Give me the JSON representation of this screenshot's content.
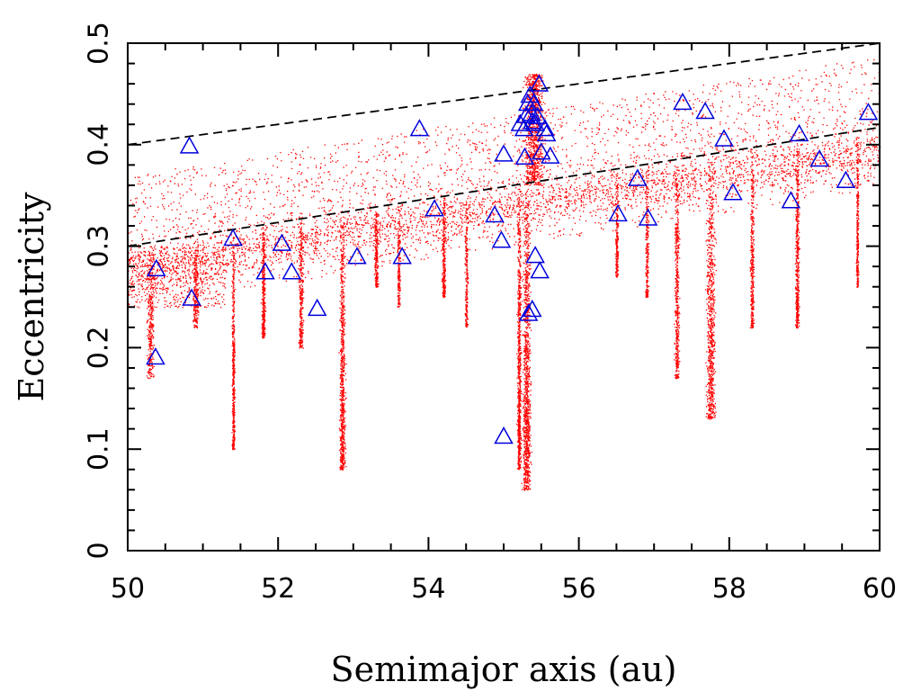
{
  "chart_data": {
    "type": "scatter",
    "title": "",
    "xlabel": "Semimajor axis (au)",
    "ylabel": "Eccentricity",
    "xlim": [
      50,
      60
    ],
    "ylim": [
      0,
      0.5
    ],
    "x_ticks": [
      "50",
      "52",
      "54",
      "56",
      "58",
      "60"
    ],
    "y_ticks": [
      "0",
      "0.1",
      "0.2",
      "0.3",
      "0.4",
      "0.5"
    ],
    "grid": false,
    "legend": "none",
    "colors": {
      "simulated_particles": "#ff0000",
      "observed_objects": "#0000dd",
      "perihelion_lines": "#000000"
    },
    "reference_lines": [
      {
        "style": "dashed",
        "x": [
          50,
          60
        ],
        "y": [
          0.4,
          0.5
        ]
      },
      {
        "style": "dashed",
        "x": [
          50,
          60
        ],
        "y": [
          0.3,
          0.417
        ]
      }
    ],
    "series": [
      {
        "marker": "triangle-open",
        "x": [
          50.37,
          50.38,
          50.82,
          50.85,
          51.4,
          51.83,
          52.05,
          52.18,
          52.52,
          53.05,
          53.65,
          53.88,
          54.08,
          54.88,
          54.97,
          55.0,
          55.0,
          55.22,
          55.27,
          55.28,
          55.3,
          55.32,
          55.33,
          55.35,
          55.37,
          55.38,
          55.38,
          55.4,
          55.42,
          55.42,
          55.45,
          55.47,
          55.48,
          55.5,
          55.55,
          55.57,
          55.62,
          56.52,
          56.78,
          56.92,
          57.38,
          57.68,
          57.93,
          58.05,
          58.82,
          58.93,
          59.2,
          59.55,
          59.85
        ],
        "y": [
          0.19,
          0.277,
          0.398,
          0.248,
          0.307,
          0.274,
          0.302,
          0.274,
          0.238,
          0.289,
          0.289,
          0.415,
          0.336,
          0.33,
          0.305,
          0.39,
          0.112,
          0.42,
          0.415,
          0.387,
          0.428,
          0.44,
          0.233,
          0.448,
          0.43,
          0.422,
          0.237,
          0.44,
          0.29,
          0.42,
          0.427,
          0.459,
          0.275,
          0.392,
          0.415,
          0.41,
          0.388,
          0.331,
          0.366,
          0.327,
          0.441,
          0.432,
          0.405,
          0.352,
          0.344,
          0.41,
          0.385,
          0.364,
          0.431
        ]
      }
    ]
  }
}
